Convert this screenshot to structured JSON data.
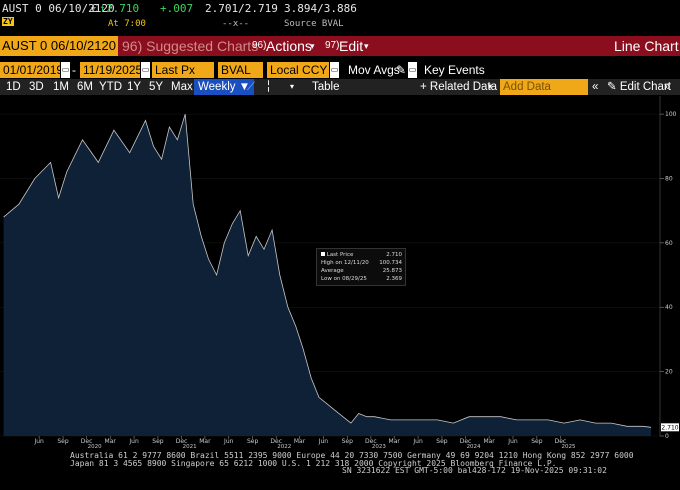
{
  "quote": {
    "ticker": "AUST 0 06/10/2120",
    "currency": "€",
    "last": "2.710",
    "change": "+.007",
    "bid_ask": "2.701/2.719",
    "yield": "3.894/3.886",
    "time": "At 7:00",
    "dashes": "--x--",
    "source": "Source BVAL",
    "badge": "ZY"
  },
  "header": {
    "ticker": "AUST 0 06/10/2120",
    "suggested": "96) Suggested Charts",
    "actions_num": "96)",
    "actions": "Actions",
    "edit_num": "97)",
    "edit": "Edit",
    "title": "Line Chart"
  },
  "params": {
    "start": "01/01/2019",
    "end": "11/19/2025",
    "price": "Last Px",
    "source": "BVAL",
    "ccy": "Local CCY",
    "mov_avgs": "Mov Avgs",
    "key_events": "Key Events"
  },
  "periods": {
    "items": [
      "1D",
      "3D",
      "1M",
      "6M",
      "YTD",
      "1Y",
      "5Y",
      "Max"
    ],
    "frequency": "Weekly",
    "table": "Table",
    "related": "+ Related Data",
    "add_data": "Add Data",
    "edit_chart": "Edit Chart"
  },
  "legend": {
    "last_label": "Last Price",
    "last_value": "2.710",
    "high_label": "High on 12/11/20",
    "high_value": "100.734",
    "avg_label": "Average",
    "avg_value": "25.873",
    "low_label": "Low on 08/29/25",
    "low_value": "2.369"
  },
  "chart_data": {
    "type": "area",
    "ylim": [
      0,
      105
    ],
    "yticks": [
      0,
      20,
      40,
      60,
      80,
      100
    ],
    "last_label": "2.710",
    "month_ticks": [
      "Jun",
      "Sep",
      "Dec",
      "Mar",
      "Jun",
      "Sep",
      "Dec",
      "Mar",
      "Jun",
      "Sep",
      "Dec",
      "Mar",
      "Jun",
      "Sep",
      "Dec",
      "Mar",
      "Jun",
      "Sep",
      "Dec",
      "Mar",
      "Jun",
      "Sep",
      "Dec"
    ],
    "year_labels": [
      "2020",
      "2021",
      "2022",
      "2023",
      "2024",
      "2025"
    ],
    "x": [
      "2019-01",
      "2019-03",
      "2019-05",
      "2019-07",
      "2019-08",
      "2019-09",
      "2019-11",
      "2020-01",
      "2020-03",
      "2020-05",
      "2020-07",
      "2020-08",
      "2020-09",
      "2020-10",
      "2020-11",
      "2020-12",
      "2021-01",
      "2021-02",
      "2021-03",
      "2021-04",
      "2021-05",
      "2021-06",
      "2021-07",
      "2021-08",
      "2021-09",
      "2021-10",
      "2021-11",
      "2021-12",
      "2022-01",
      "2022-02",
      "2022-03",
      "2022-04",
      "2022-05",
      "2022-06",
      "2022-07",
      "2022-08",
      "2022-09",
      "2022-10",
      "2022-11",
      "2022-12",
      "2023-02",
      "2023-04",
      "2023-06",
      "2023-08",
      "2023-10",
      "2023-12",
      "2024-02",
      "2024-04",
      "2024-06",
      "2024-08",
      "2024-10",
      "2024-12",
      "2025-02",
      "2025-04",
      "2025-06",
      "2025-08",
      "2025-10",
      "2025-11"
    ],
    "values": [
      68,
      72,
      80,
      85,
      74,
      82,
      92,
      85,
      95,
      88,
      98,
      90,
      86,
      96,
      92,
      100,
      72,
      62,
      55,
      50,
      60,
      66,
      70,
      56,
      62,
      58,
      64,
      50,
      40,
      34,
      27,
      18,
      12,
      10,
      8,
      6,
      4,
      7,
      6,
      6,
      5,
      5,
      5,
      5,
      4,
      6,
      6,
      6,
      5,
      5,
      5,
      4,
      5,
      4,
      4,
      3,
      3,
      2.7
    ]
  },
  "footer": {
    "line1": "Australia 61 2 9777 8600 Brazil 5511 2395 9000 Europe 44 20 7330 7500 Germany 49 69 9204 1210 Hong Kong 852 2977 6000",
    "line2": "Japan 81 3 4565 8900       Singapore 65 6212 1000       U.S. 1 212 318 2000      Copyright 2025 Bloomberg Finance L.P.",
    "line3": "SN 3231622 EST  GMT-5:00 bal428-172 19-Nov-2025 09:31:02"
  }
}
